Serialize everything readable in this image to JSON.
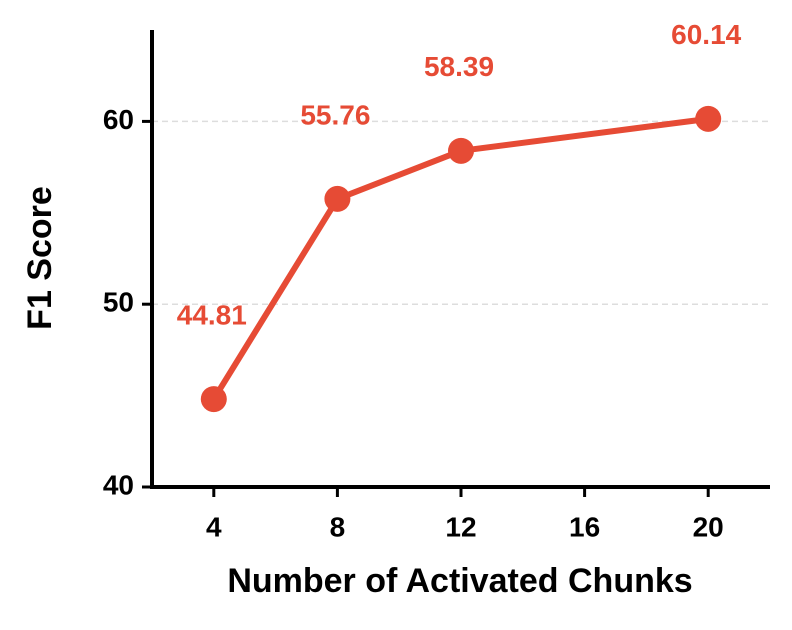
{
  "chart_data": {
    "type": "line",
    "xlabel": "Number of Activated Chunks",
    "ylabel": "F1 Score",
    "x": [
      4,
      8,
      12,
      20
    ],
    "series": [
      {
        "name": "F1 Score",
        "color": "#e64b35",
        "values": [
          44.81,
          55.76,
          58.39,
          60.14
        ]
      }
    ],
    "xlim": [
      2,
      22
    ],
    "xticks": [
      4,
      8,
      12,
      16,
      20
    ],
    "ylim": [
      40,
      65
    ],
    "yticks": [
      40,
      50,
      60
    ],
    "grid": true,
    "data_labels": true
  }
}
